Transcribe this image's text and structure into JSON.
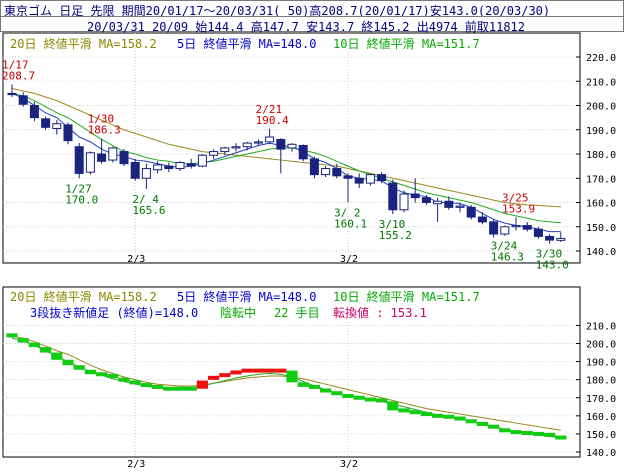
{
  "header": {
    "line1": "東京ゴム 日足 先限 期間20/01/17～20/03/31( 50)高208.7(20/01/17)安143.0(20/03/30)",
    "line2": "20/03/31 20/09 始144.4 高147.7 安143.7 終145.2 出4974 前取11812"
  },
  "legend": {
    "ma20": "20日 終値平滑 MA=158.2",
    "ma5": "5日 終値平滑 MA=148.0",
    "ma10": "10日 終値平滑 MA=151.7"
  },
  "lower_info": {
    "text": "3段抜き新値足 (終値)=148.0",
    "state": "陰転中",
    "count": "22 手目",
    "reversal": "転換値 : 153.1"
  },
  "colors": {
    "up": "#ffffff",
    "down": "#1a237e",
    "ma5": "#1f3fbf",
    "ma10": "#22aa22",
    "ma20": "#998822",
    "yang": "#ee1111",
    "yin": "#11cc11",
    "annot_red": "#cc0000",
    "annot_green": "#007700"
  },
  "chart_data": [
    {
      "type": "candlestick",
      "title": "東京ゴム 日足 先限",
      "ylim": [
        140,
        220
      ],
      "yticks": [
        "140.0",
        "150.0",
        "160.0",
        "170.0",
        "180.0",
        "190.0",
        "200.0",
        "210.0",
        "220.0"
      ],
      "xticks": [
        {
          "label": "2/3",
          "index": 11
        },
        {
          "label": "3/2",
          "index": 30
        }
      ],
      "candles": [
        {
          "o": 205.0,
          "h": 208.7,
          "l": 203.5,
          "c": 204.5
        },
        {
          "o": 204.0,
          "h": 205.5,
          "l": 199.5,
          "c": 200.5
        },
        {
          "o": 200.0,
          "h": 201.5,
          "l": 193.5,
          "c": 195.0
        },
        {
          "o": 194.5,
          "h": 195.5,
          "l": 190.0,
          "c": 191.0
        },
        {
          "o": 190.5,
          "h": 194.0,
          "l": 188.0,
          "c": 192.5
        },
        {
          "o": 192.0,
          "h": 193.0,
          "l": 184.0,
          "c": 185.5
        },
        {
          "o": 183.0,
          "h": 184.5,
          "l": 170.0,
          "c": 172.0
        },
        {
          "o": 172.5,
          "h": 181.0,
          "l": 171.5,
          "c": 180.5
        },
        {
          "o": 180.0,
          "h": 186.3,
          "l": 176.0,
          "c": 177.0
        },
        {
          "o": 177.5,
          "h": 183.0,
          "l": 176.5,
          "c": 182.5
        },
        {
          "o": 181.0,
          "h": 182.0,
          "l": 175.0,
          "c": 176.0
        },
        {
          "o": 176.5,
          "h": 178.0,
          "l": 169.0,
          "c": 170.0
        },
        {
          "o": 170.0,
          "h": 176.0,
          "l": 165.6,
          "c": 174.0
        },
        {
          "o": 173.5,
          "h": 177.0,
          "l": 172.0,
          "c": 175.5
        },
        {
          "o": 175.0,
          "h": 176.5,
          "l": 172.5,
          "c": 174.0
        },
        {
          "o": 174.0,
          "h": 177.0,
          "l": 173.0,
          "c": 176.5
        },
        {
          "o": 176.0,
          "h": 178.0,
          "l": 174.0,
          "c": 175.0
        },
        {
          "o": 175.0,
          "h": 180.0,
          "l": 174.5,
          "c": 179.5
        },
        {
          "o": 179.5,
          "h": 182.0,
          "l": 178.0,
          "c": 181.0
        },
        {
          "o": 181.0,
          "h": 183.0,
          "l": 179.5,
          "c": 182.5
        },
        {
          "o": 182.5,
          "h": 184.5,
          "l": 181.0,
          "c": 183.0
        },
        {
          "o": 183.0,
          "h": 185.0,
          "l": 181.5,
          "c": 184.5
        },
        {
          "o": 184.5,
          "h": 186.0,
          "l": 183.5,
          "c": 185.0
        },
        {
          "o": 185.0,
          "h": 190.4,
          "l": 184.0,
          "c": 187.0
        },
        {
          "o": 186.0,
          "h": 186.5,
          "l": 172.0,
          "c": 182.0
        },
        {
          "o": 182.5,
          "h": 184.5,
          "l": 181.0,
          "c": 184.0
        },
        {
          "o": 183.5,
          "h": 184.0,
          "l": 177.0,
          "c": 178.0
        },
        {
          "o": 178.0,
          "h": 179.0,
          "l": 170.0,
          "c": 171.5
        },
        {
          "o": 171.5,
          "h": 175.0,
          "l": 170.5,
          "c": 174.0
        },
        {
          "o": 174.0,
          "h": 176.0,
          "l": 170.0,
          "c": 171.0
        },
        {
          "o": 171.0,
          "h": 172.0,
          "l": 160.1,
          "c": 170.0
        },
        {
          "o": 170.0,
          "h": 172.0,
          "l": 166.0,
          "c": 168.0
        },
        {
          "o": 168.0,
          "h": 172.0,
          "l": 167.0,
          "c": 171.5
        },
        {
          "o": 171.5,
          "h": 172.5,
          "l": 168.0,
          "c": 169.0
        },
        {
          "o": 168.0,
          "h": 169.5,
          "l": 155.2,
          "c": 157.0
        },
        {
          "o": 157.0,
          "h": 165.0,
          "l": 156.0,
          "c": 163.5
        },
        {
          "o": 163.5,
          "h": 170.0,
          "l": 160.0,
          "c": 162.0
        },
        {
          "o": 162.0,
          "h": 163.0,
          "l": 159.0,
          "c": 160.0
        },
        {
          "o": 159.5,
          "h": 162.0,
          "l": 152.0,
          "c": 160.5
        },
        {
          "o": 160.5,
          "h": 162.5,
          "l": 157.0,
          "c": 158.0
        },
        {
          "o": 158.0,
          "h": 160.0,
          "l": 156.0,
          "c": 158.5
        },
        {
          "o": 158.0,
          "h": 159.0,
          "l": 153.0,
          "c": 154.0
        },
        {
          "o": 154.0,
          "h": 156.0,
          "l": 151.0,
          "c": 152.0
        },
        {
          "o": 152.0,
          "h": 153.0,
          "l": 145.5,
          "c": 147.0
        },
        {
          "o": 147.0,
          "h": 150.5,
          "l": 146.3,
          "c": 150.0
        },
        {
          "o": 150.0,
          "h": 153.9,
          "l": 148.5,
          "c": 150.5
        },
        {
          "o": 150.5,
          "h": 152.0,
          "l": 148.0,
          "c": 149.0
        },
        {
          "o": 149.0,
          "h": 150.0,
          "l": 145.0,
          "c": 146.0
        },
        {
          "o": 146.0,
          "h": 147.0,
          "l": 143.0,
          "c": 144.5
        },
        {
          "o": 144.4,
          "h": 147.7,
          "l": 143.7,
          "c": 145.2
        }
      ],
      "ma5": [
        205.0,
        203.0,
        200.0,
        197.0,
        195.0,
        191.0,
        187.0,
        185.0,
        182.0,
        180.0,
        179.0,
        177.5,
        177.0,
        176.0,
        175.0,
        174.5,
        175.0,
        176.0,
        177.5,
        179.0,
        180.5,
        182.0,
        183.5,
        184.5,
        183.5,
        183.0,
        181.0,
        178.0,
        176.5,
        174.0,
        171.0,
        170.0,
        169.5,
        169.0,
        166.0,
        164.0,
        163.0,
        162.5,
        160.0,
        160.0,
        159.5,
        158.0,
        155.5,
        153.0,
        151.5,
        150.5,
        150.0,
        149.0,
        148.0,
        148.0
      ],
      "ma10": [
        205.0,
        204.0,
        202.0,
        199.5,
        197.0,
        195.0,
        192.0,
        189.0,
        186.0,
        183.5,
        181.0,
        180.0,
        178.5,
        177.5,
        177.0,
        176.0,
        176.0,
        176.5,
        177.0,
        178.0,
        179.0,
        180.0,
        181.0,
        182.0,
        182.5,
        182.5,
        181.5,
        180.5,
        179.0,
        177.0,
        175.0,
        173.0,
        171.5,
        170.0,
        168.5,
        167.0,
        165.5,
        164.0,
        163.0,
        162.0,
        161.0,
        160.0,
        158.5,
        157.0,
        155.5,
        154.5,
        153.5,
        152.5,
        152.0,
        151.7
      ],
      "ma20": [
        207.0,
        206.0,
        205.0,
        203.5,
        202.0,
        200.0,
        198.0,
        196.0,
        194.0,
        192.0,
        190.0,
        188.5,
        187.0,
        185.5,
        184.0,
        183.0,
        182.0,
        181.0,
        180.5,
        180.0,
        179.5,
        179.0,
        178.5,
        178.0,
        177.5,
        177.0,
        176.5,
        176.0,
        175.5,
        175.0,
        174.0,
        173.0,
        172.0,
        171.0,
        170.0,
        169.0,
        168.0,
        167.0,
        166.0,
        165.0,
        164.0,
        163.0,
        162.0,
        161.0,
        160.0,
        159.5,
        159.0,
        158.8,
        158.5,
        158.2
      ],
      "annotations": [
        {
          "text": "1/17",
          "text2": "208.7",
          "color": "red",
          "index": 0,
          "value": 208.7
        },
        {
          "text": "1/30",
          "text2": "186.3",
          "color": "red",
          "index": 8,
          "value": 186.3
        },
        {
          "text": "2/21",
          "text2": "190.4",
          "color": "red",
          "index": 23,
          "value": 190.4
        },
        {
          "text": "3/25",
          "text2": "153.9",
          "color": "red",
          "index": 45,
          "value": 153.9
        },
        {
          "text": "1/27",
          "text2": "170.0",
          "color": "green",
          "index": 6,
          "value": 170.0
        },
        {
          "text": "2/ 4",
          "text2": "165.6",
          "color": "green",
          "index": 12,
          "value": 165.6
        },
        {
          "text": "3/ 2",
          "text2": "160.1",
          "color": "green",
          "index": 30,
          "value": 160.1
        },
        {
          "text": "3/10",
          "text2": "155.2",
          "color": "green",
          "index": 34,
          "value": 155.2
        },
        {
          "text": "3/24",
          "text2": "146.3",
          "color": "green",
          "index": 44,
          "value": 146.3
        },
        {
          "text": "3/30",
          "text2": "143.0",
          "color": "green",
          "index": 48,
          "value": 143.0
        }
      ]
    },
    {
      "type": "new-price-bars",
      "title": "3段抜き新値足 (終値)",
      "ylim": [
        140,
        213
      ],
      "yticks": [
        "140.0",
        "150.0",
        "160.0",
        "170.0",
        "180.0",
        "190.0",
        "200.0",
        "210.0"
      ],
      "xticks": [
        {
          "label": "2/3",
          "index": 11
        },
        {
          "label": "3/2",
          "index": 30
        }
      ],
      "bars": [
        {
          "dir": "down",
          "hi": 204.5,
          "lo": 203.0
        },
        {
          "dir": "down",
          "hi": 203.0,
          "lo": 200.5
        },
        {
          "dir": "down",
          "hi": 200.5,
          "lo": 198.0
        },
        {
          "dir": "down",
          "hi": 198.0,
          "lo": 195.0
        },
        {
          "dir": "down",
          "hi": 195.0,
          "lo": 191.0
        },
        {
          "dir": "down",
          "hi": 191.0,
          "lo": 188.0
        },
        {
          "dir": "down",
          "hi": 188.0,
          "lo": 185.5
        },
        {
          "dir": "down",
          "hi": 185.5,
          "lo": 183.0
        },
        {
          "dir": "down",
          "hi": 183.0,
          "lo": 182.0
        },
        {
          "dir": "down",
          "hi": 182.0,
          "lo": 180.0
        },
        {
          "dir": "down",
          "hi": 180.0,
          "lo": 178.5
        },
        {
          "dir": "down",
          "hi": 178.5,
          "lo": 177.0
        },
        {
          "dir": "down",
          "hi": 177.0,
          "lo": 176.0
        },
        {
          "dir": "down",
          "hi": 176.0,
          "lo": 175.0
        },
        {
          "dir": "down",
          "hi": 175.0,
          "lo": 175.0
        },
        {
          "dir": "down",
          "hi": 175.0,
          "lo": 175.0
        },
        {
          "dir": "down",
          "hi": 175.0,
          "lo": 175.0
        },
        {
          "dir": "up",
          "hi": 179.5,
          "lo": 175.0
        },
        {
          "dir": "up",
          "hi": 181.0,
          "lo": 179.5
        },
        {
          "dir": "up",
          "hi": 182.5,
          "lo": 181.0
        },
        {
          "dir": "up",
          "hi": 184.0,
          "lo": 182.5
        },
        {
          "dir": "up",
          "hi": 185.0,
          "lo": 184.0
        },
        {
          "dir": "up",
          "hi": 185.0,
          "lo": 185.0
        },
        {
          "dir": "up",
          "hi": 185.0,
          "lo": 185.0
        },
        {
          "dir": "up",
          "hi": 185.0,
          "lo": 185.0
        },
        {
          "dir": "down",
          "hi": 185.0,
          "lo": 178.5
        },
        {
          "dir": "down",
          "hi": 178.5,
          "lo": 176.0
        },
        {
          "dir": "down",
          "hi": 176.0,
          "lo": 174.0
        },
        {
          "dir": "down",
          "hi": 174.0,
          "lo": 172.5
        },
        {
          "dir": "down",
          "hi": 172.5,
          "lo": 171.0
        },
        {
          "dir": "down",
          "hi": 171.0,
          "lo": 170.0
        },
        {
          "dir": "down",
          "hi": 170.0,
          "lo": 169.0
        },
        {
          "dir": "down",
          "hi": 169.0,
          "lo": 168.5
        },
        {
          "dir": "down",
          "hi": 168.5,
          "lo": 168.0
        },
        {
          "dir": "down",
          "hi": 168.0,
          "lo": 163.0
        },
        {
          "dir": "down",
          "hi": 163.0,
          "lo": 162.0
        },
        {
          "dir": "down",
          "hi": 162.0,
          "lo": 161.0
        },
        {
          "dir": "down",
          "hi": 161.0,
          "lo": 160.0
        },
        {
          "dir": "down",
          "hi": 160.0,
          "lo": 159.5
        },
        {
          "dir": "down",
          "hi": 159.5,
          "lo": 158.5
        },
        {
          "dir": "down",
          "hi": 158.5,
          "lo": 157.0
        },
        {
          "dir": "down",
          "hi": 157.0,
          "lo": 155.5
        },
        {
          "dir": "down",
          "hi": 155.5,
          "lo": 154.0
        },
        {
          "dir": "down",
          "hi": 154.0,
          "lo": 152.0
        },
        {
          "dir": "down",
          "hi": 152.0,
          "lo": 151.0
        },
        {
          "dir": "down",
          "hi": 151.0,
          "lo": 150.5
        },
        {
          "dir": "down",
          "hi": 150.5,
          "lo": 150.0
        },
        {
          "dir": "down",
          "hi": 150.0,
          "lo": 149.5
        },
        {
          "dir": "down",
          "hi": 149.5,
          "lo": 148.0
        },
        {
          "dir": "down",
          "hi": 148.0,
          "lo": 147.0
        }
      ],
      "ma_hi": [
        204.0,
        203.0,
        201.0,
        198.5,
        196.0,
        194.0,
        191.0,
        188.0,
        185.5,
        183.5,
        181.5,
        180.0,
        178.5,
        177.5,
        177.0,
        176.5,
        176.5,
        177.0,
        178.0,
        179.0,
        180.0,
        181.0,
        181.5,
        182.0,
        182.0,
        181.5,
        180.5,
        179.0,
        177.5,
        176.0,
        174.5,
        173.0,
        171.5,
        170.0,
        168.5,
        167.0,
        165.5,
        164.0,
        163.0,
        162.0,
        161.0,
        160.0,
        159.0,
        158.0,
        157.0,
        156.0,
        155.0,
        154.0,
        153.0,
        152.0
      ],
      "ma_lo": [
        203.0,
        201.5,
        199.0,
        196.0,
        193.0,
        190.0,
        187.0,
        184.5,
        182.5,
        180.5,
        179.0,
        177.5,
        176.5,
        175.5,
        175.0,
        175.0,
        175.5,
        176.5,
        178.0,
        179.5,
        181.0,
        182.0,
        183.0,
        183.5,
        183.0,
        181.5,
        179.0,
        176.5,
        174.5,
        172.5,
        171.0,
        170.0,
        169.0,
        168.0,
        166.5,
        165.0,
        163.5,
        162.0,
        160.5,
        159.5,
        158.5,
        157.0,
        155.5,
        154.0,
        152.5,
        151.5,
        150.5,
        149.5,
        148.5,
        148.0
      ]
    }
  ]
}
